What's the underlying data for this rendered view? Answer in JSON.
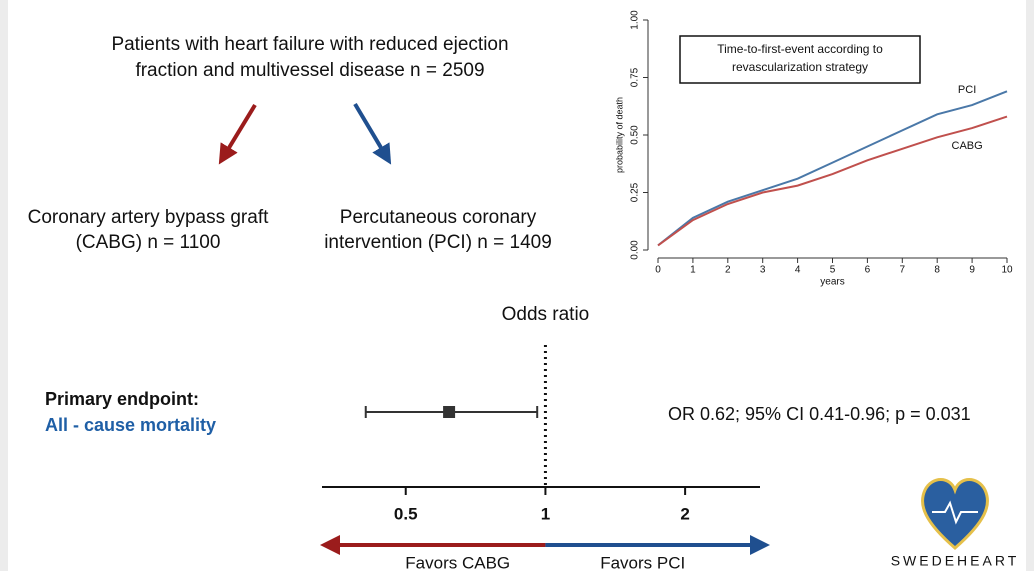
{
  "header": {
    "lines": [
      "Patients with heart failure with reduced ejection",
      "fraction and multivessel disease n = 2509"
    ]
  },
  "groups": [
    {
      "lines": [
        "Coronary artery bypass graft",
        "(CABG) n = 1100"
      ],
      "color": "#9b1c1c"
    },
    {
      "lines": [
        "Percutaneous coronary",
        "intervention (PCI) n = 1409"
      ],
      "color": "#1f4f8f"
    }
  ],
  "km_chart": {
    "type": "line",
    "title_lines": [
      "Time-to-first-event according to",
      "revascularization strategy"
    ],
    "x": [
      0,
      1,
      2,
      3,
      4,
      5,
      6,
      7,
      8,
      9,
      10
    ],
    "series": [
      {
        "name": "PCI",
        "color": "#4a78a8",
        "values": [
          0.02,
          0.14,
          0.21,
          0.26,
          0.31,
          0.38,
          0.45,
          0.52,
          0.59,
          0.63,
          0.69
        ]
      },
      {
        "name": "CABG",
        "color": "#c0504d",
        "values": [
          0.02,
          0.13,
          0.2,
          0.25,
          0.28,
          0.33,
          0.39,
          0.44,
          0.49,
          0.53,
          0.58
        ]
      }
    ],
    "xlim": [
      0,
      10
    ],
    "ylim": [
      0,
      1
    ],
    "xticks": [
      0,
      1,
      2,
      3,
      4,
      5,
      6,
      7,
      8,
      9,
      10
    ],
    "yticks": [
      {
        "value": 0,
        "label": "0.00"
      },
      {
        "value": 0.25,
        "label": "0.25"
      },
      {
        "value": 0.5,
        "label": "0.50"
      },
      {
        "value": 0.75,
        "label": "0.75"
      },
      {
        "value": 1,
        "label": "1.00"
      }
    ],
    "xlabel": "years",
    "ylabel": "probability of death"
  },
  "forest": {
    "type": "forest",
    "title": "Odds ratio",
    "endpoint_label": "Primary endpoint:",
    "endpoint": "All - cause mortality",
    "estimate": 0.62,
    "ci": [
      0.41,
      0.96
    ],
    "result_text": "OR 0.62; 95% CI 0.41-0.96; p = 0.031",
    "log_scale": true,
    "xlim": [
      0.33,
      2.9
    ],
    "xticks": [
      0.5,
      1,
      2
    ],
    "reference": 1,
    "favors": [
      "Favors CABG",
      "Favors PCI"
    ]
  },
  "logo": "SWEDEHEART"
}
